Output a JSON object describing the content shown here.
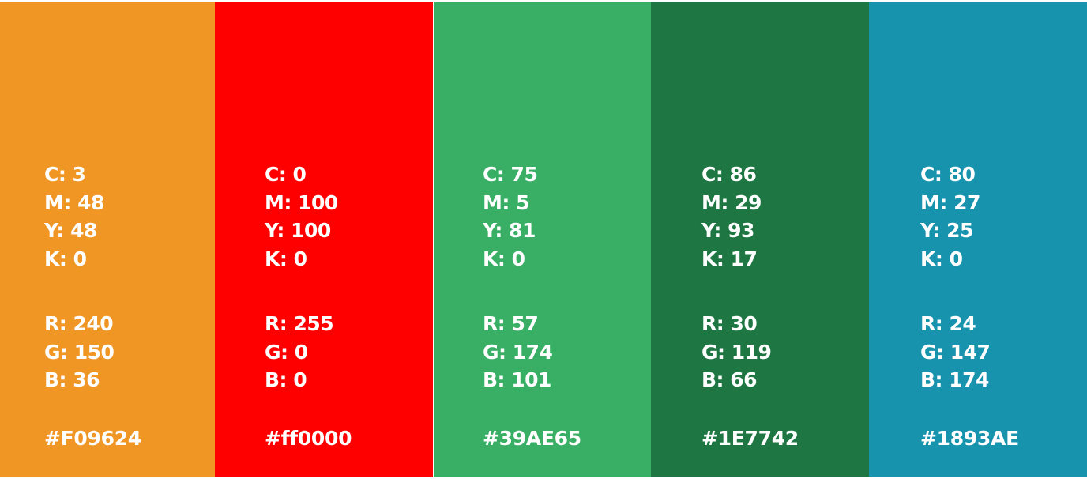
{
  "swatches": [
    {
      "color": "#F09624",
      "cmyk": [
        "C: 3",
        "M: 48",
        "Y: 48",
        "K: 0"
      ],
      "rgb": [
        "R: 240",
        "G: 150",
        "B: 36"
      ],
      "hex": "#F09624"
    },
    {
      "color": "#ff0000",
      "cmyk": [
        "C: 0",
        "M: 100",
        "Y: 100",
        "K: 0"
      ],
      "rgb": [
        "R: 255",
        "G: 0",
        "B: 0"
      ],
      "hex": "#ff0000"
    },
    {
      "color": "#39AE65",
      "cmyk": [
        "C: 75",
        "M: 5",
        "Y: 81",
        "K: 0"
      ],
      "rgb": [
        "R: 57",
        "G: 174",
        "B: 101"
      ],
      "hex": "#39AE65"
    },
    {
      "color": "#1E7742",
      "cmyk": [
        "C: 86",
        "M: 29",
        "Y: 93",
        "K: 17"
      ],
      "rgb": [
        "R: 30",
        "G: 119",
        "B: 66"
      ],
      "hex": "#1E7742"
    },
    {
      "color": "#1893AE",
      "cmyk": [
        "C: 80",
        "M: 27",
        "Y: 25",
        "K: 0"
      ],
      "rgb": [
        "R: 24",
        "G: 147",
        "B: 174"
      ],
      "hex": "#1893AE"
    }
  ]
}
